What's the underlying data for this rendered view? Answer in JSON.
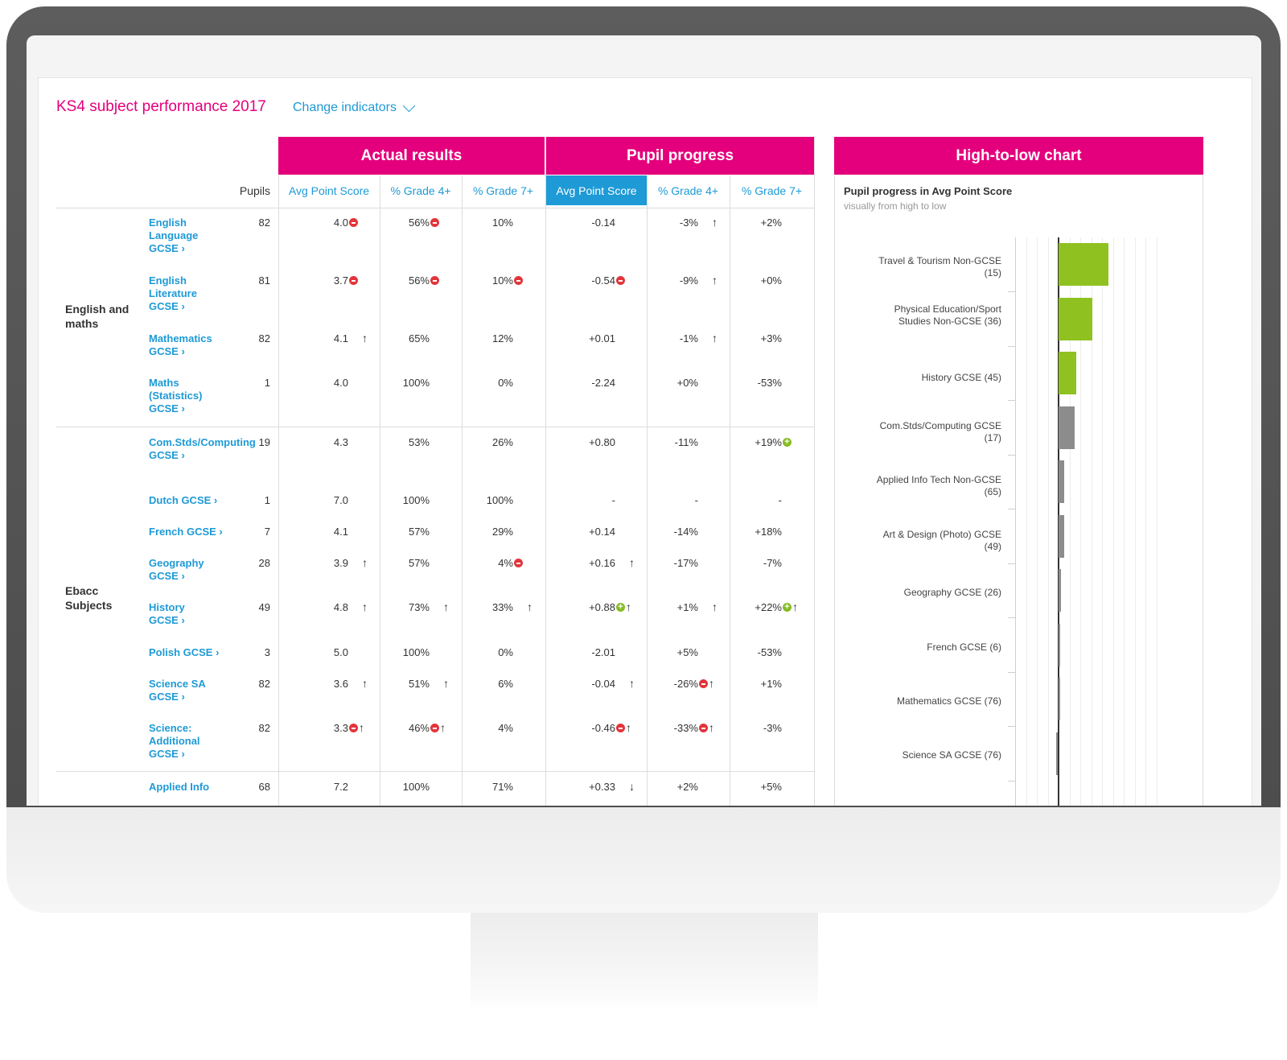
{
  "header": {
    "title": "KS4 subject performance 2017",
    "change_indicators": "Change indicators"
  },
  "groups": {
    "actual": "Actual results",
    "progress": "Pupil progress",
    "chart": "High-to-low chart"
  },
  "columns": {
    "pupils": "Pupils",
    "actual_aps": "Avg Point Score",
    "actual_g4": "% Grade 4+",
    "actual_g7": "% Grade 7+",
    "prog_aps": "Avg Point Score",
    "prog_g4": "% Grade 4+",
    "prog_g7": "% Grade 7+"
  },
  "sections": [
    {
      "label": "English and maths"
    },
    {
      "label": "Ebacc Subjects"
    }
  ],
  "rows": [
    {
      "subject": "English Language GCSE ›",
      "pupils": "82",
      "aps": "4.0",
      "g4": "56%",
      "g7": "10%",
      "paps": "-0.14",
      "pg4": "-3%",
      "pg7": "+2%"
    },
    {
      "subject": "English Literature GCSE ›",
      "pupils": "81",
      "aps": "3.7",
      "g4": "56%",
      "g7": "10%",
      "paps": "-0.54",
      "pg4": "-9%",
      "pg7": "+0%"
    },
    {
      "subject": "Mathematics GCSE ›",
      "pupils": "82",
      "aps": "4.1",
      "g4": "65%",
      "g7": "12%",
      "paps": "+0.01",
      "pg4": "-1%",
      "pg7": "+3%"
    },
    {
      "subject": "Maths (Statistics) GCSE ›",
      "pupils": "1",
      "aps": "4.0",
      "g4": "100%",
      "g7": "0%",
      "paps": "-2.24",
      "pg4": "+0%",
      "pg7": "-53%"
    },
    {
      "subject": "Com.Stds/Computing GCSE ›",
      "pupils": "19",
      "aps": "4.3",
      "g4": "53%",
      "g7": "26%",
      "paps": "+0.80",
      "pg4": "-11%",
      "pg7": "+19%"
    },
    {
      "subject": "Dutch GCSE ›",
      "pupils": "1",
      "aps": "7.0",
      "g4": "100%",
      "g7": "100%",
      "paps": "-",
      "pg4": "-",
      "pg7": "-"
    },
    {
      "subject": "French GCSE ›",
      "pupils": "7",
      "aps": "4.1",
      "g4": "57%",
      "g7": "29%",
      "paps": "+0.14",
      "pg4": "-14%",
      "pg7": "+18%"
    },
    {
      "subject": "Geography GCSE ›",
      "pupils": "28",
      "aps": "3.9",
      "g4": "57%",
      "g7": "4%",
      "paps": "+0.16",
      "pg4": "-17%",
      "pg7": "-7%"
    },
    {
      "subject": "History GCSE ›",
      "pupils": "49",
      "aps": "4.8",
      "g4": "73%",
      "g7": "33%",
      "paps": "+0.88",
      "pg4": "+1%",
      "pg7": "+22%"
    },
    {
      "subject": "Polish GCSE ›",
      "pupils": "3",
      "aps": "5.0",
      "g4": "100%",
      "g7": "0%",
      "paps": "-2.01",
      "pg4": "+5%",
      "pg7": "-53%"
    },
    {
      "subject": "Science SA GCSE ›",
      "pupils": "82",
      "aps": "3.6",
      "g4": "51%",
      "g7": "6%",
      "paps": "-0.04",
      "pg4": "-26%",
      "pg7": "+1%"
    },
    {
      "subject": "Science: Additional GCSE ›",
      "pupils": "82",
      "aps": "3.3",
      "g4": "46%",
      "g7": "4%",
      "paps": "-0.46",
      "pg4": "-33%",
      "pg7": "-3%"
    },
    {
      "subject": "Applied Info",
      "pupils": "68",
      "aps": "7.2",
      "g4": "100%",
      "g7": "71%",
      "paps": "+0.33",
      "pg4": "+2%",
      "pg7": "+5%"
    }
  ],
  "chart": {
    "subtitle": "Pupil progress in Avg Point Score",
    "note": "visually from high to low",
    "colors": {
      "positive": "#8fc121",
      "neutral": "#8c8c8c"
    },
    "bars": [
      {
        "label": "Travel & Tourism Non-GCSE (15)",
        "value": 1.2,
        "color": "positive"
      },
      {
        "label": "Physical Education/Sport Studies Non-GCSE (36)",
        "value": 0.8,
        "color": "positive"
      },
      {
        "label": "History GCSE (45)",
        "value": 0.42,
        "color": "positive"
      },
      {
        "label": "Com.Stds/Computing GCSE (17)",
        "value": 0.39,
        "color": "neutral"
      },
      {
        "label": "Applied Info Tech Non-GCSE (65)",
        "value": 0.13,
        "color": "neutral"
      },
      {
        "label": "Art & Design (Photo) GCSE (49)",
        "value": 0.13,
        "color": "neutral"
      },
      {
        "label": "Geography GCSE (26)",
        "value": 0.05,
        "color": "neutral"
      },
      {
        "label": "French GCSE (6)",
        "value": 0.02,
        "color": "neutral"
      },
      {
        "label": "Mathematics GCSE (76)",
        "value": 0.0,
        "color": "neutral"
      },
      {
        "label": "Science SA GCSE (76)",
        "value": -0.01,
        "color": "neutral"
      }
    ]
  }
}
